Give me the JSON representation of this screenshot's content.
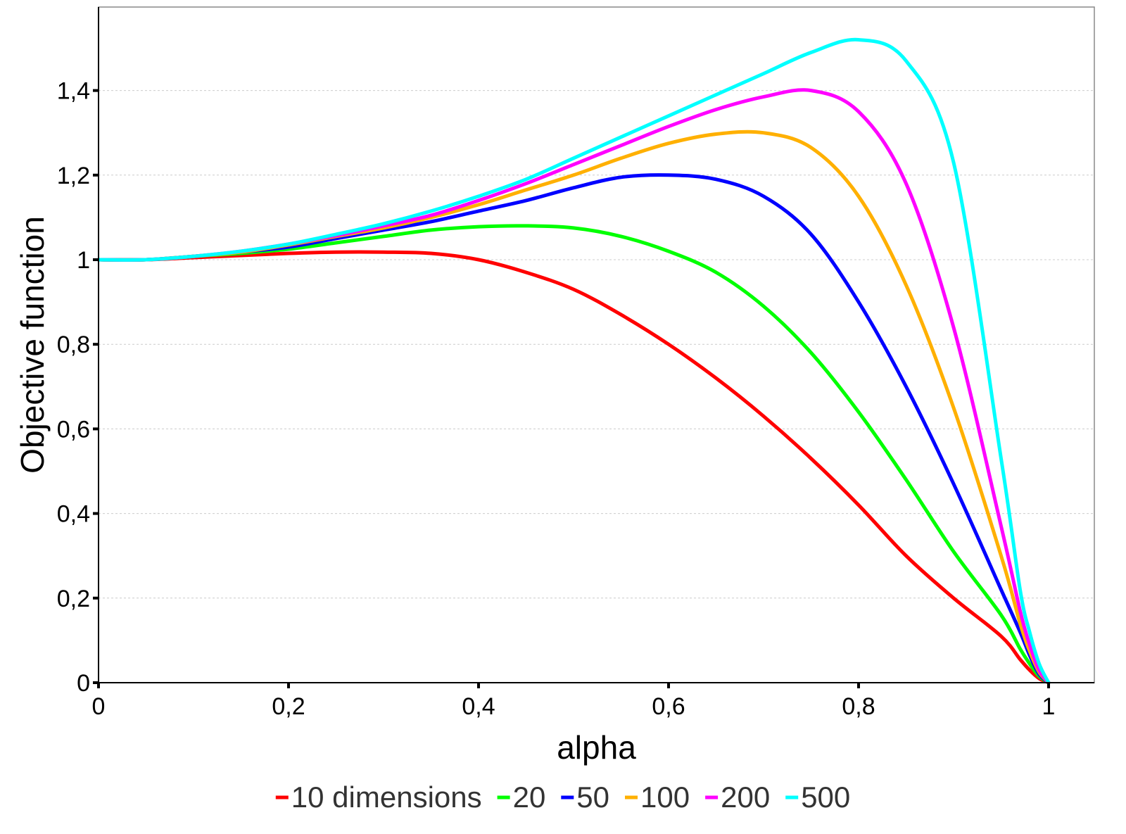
{
  "chart_data": {
    "type": "line",
    "xlabel": "alpha",
    "ylabel": "Objective function",
    "xlim": [
      0,
      1.05
    ],
    "ylim": [
      0,
      1.6
    ],
    "x_ticks": [
      0,
      0.2,
      0.4,
      0.6,
      0.8,
      1
    ],
    "x_tick_labels": [
      "0",
      "0,2",
      "0,4",
      "0,6",
      "0,8",
      "1"
    ],
    "y_ticks": [
      0,
      0.2,
      0.4,
      0.6,
      0.8,
      1,
      1.2,
      1.4
    ],
    "y_tick_labels": [
      "0",
      "0,2",
      "0,4",
      "0,6",
      "0,8",
      "1",
      "1,2",
      "1,4"
    ],
    "grid": "horizontal",
    "legend_position": "bottom",
    "x": [
      0,
      0.05,
      0.1,
      0.15,
      0.2,
      0.25,
      0.3,
      0.35,
      0.4,
      0.45,
      0.5,
      0.55,
      0.6,
      0.65,
      0.7,
      0.75,
      0.8,
      0.85,
      0.9,
      0.95,
      0.97,
      0.98,
      0.99,
      1
    ],
    "series": [
      {
        "name": "10 dimensions",
        "color": "#ff0000",
        "values": [
          1.0,
          1.0,
          1.005,
          1.01,
          1.015,
          1.018,
          1.018,
          1.015,
          1.0,
          0.97,
          0.93,
          0.87,
          0.8,
          0.72,
          0.63,
          0.53,
          0.42,
          0.3,
          0.2,
          0.11,
          0.055,
          0.03,
          0.01,
          0.0
        ]
      },
      {
        "name": "20",
        "color": "#00ff00",
        "values": [
          1.0,
          1.0,
          1.008,
          1.015,
          1.025,
          1.04,
          1.055,
          1.07,
          1.078,
          1.08,
          1.075,
          1.055,
          1.02,
          0.97,
          0.89,
          0.78,
          0.64,
          0.48,
          0.31,
          0.16,
          0.08,
          0.045,
          0.015,
          0.0
        ]
      },
      {
        "name": "50",
        "color": "#0000ff",
        "values": [
          1.0,
          1.0,
          1.008,
          1.018,
          1.03,
          1.05,
          1.07,
          1.09,
          1.115,
          1.14,
          1.17,
          1.195,
          1.2,
          1.19,
          1.15,
          1.06,
          0.9,
          0.7,
          0.47,
          0.22,
          0.12,
          0.065,
          0.02,
          0.0
        ]
      },
      {
        "name": "100",
        "color": "#ffb000",
        "values": [
          1.0,
          1.0,
          1.008,
          1.018,
          1.035,
          1.055,
          1.075,
          1.1,
          1.13,
          1.165,
          1.2,
          1.24,
          1.275,
          1.297,
          1.3,
          1.265,
          1.15,
          0.94,
          0.65,
          0.3,
          0.14,
          0.075,
          0.025,
          0.0
        ]
      },
      {
        "name": "200",
        "color": "#ff00ff",
        "values": [
          1.0,
          1.0,
          1.008,
          1.02,
          1.037,
          1.057,
          1.08,
          1.105,
          1.14,
          1.18,
          1.225,
          1.27,
          1.315,
          1.355,
          1.385,
          1.4,
          1.35,
          1.18,
          0.84,
          0.37,
          0.17,
          0.09,
          0.03,
          0.0
        ]
      },
      {
        "name": "500",
        "color": "#00ffff",
        "values": [
          1.0,
          1.0,
          1.008,
          1.02,
          1.037,
          1.06,
          1.085,
          1.115,
          1.15,
          1.19,
          1.24,
          1.29,
          1.34,
          1.39,
          1.44,
          1.49,
          1.52,
          1.47,
          1.23,
          0.53,
          0.22,
          0.12,
          0.045,
          0.0
        ]
      }
    ]
  }
}
